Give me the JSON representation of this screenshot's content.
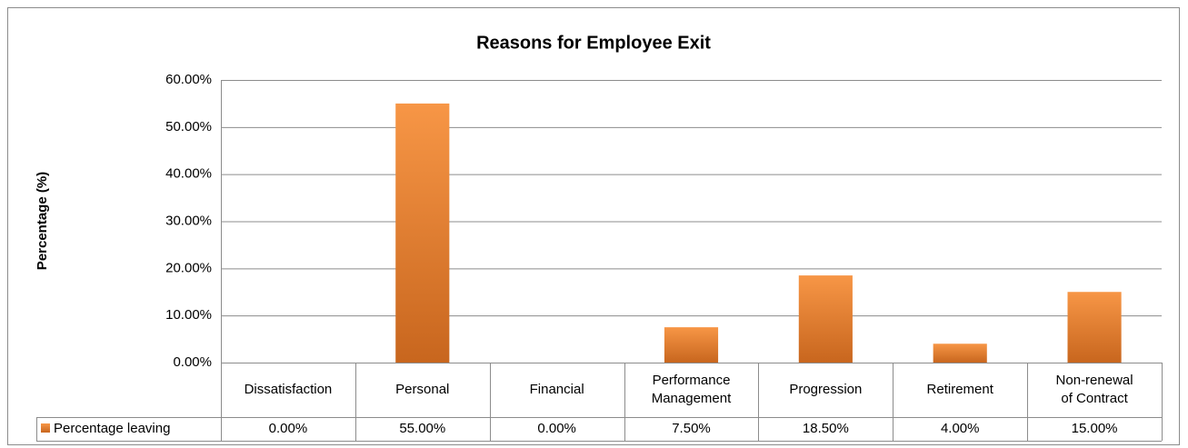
{
  "chart_data": {
    "type": "bar",
    "title": "Reasons for Employee Exit",
    "y_label": "Percentage (%)",
    "categories": [
      "Dissatisfaction",
      "Personal",
      "Financial",
      "Performance Management",
      "Progression",
      "Retirement",
      "Non-renewal of Contract"
    ],
    "series": [
      {
        "name": "Percentage leaving",
        "color": "#f79646",
        "values": [
          0,
          55,
          0,
          7.5,
          18.5,
          4,
          15
        ],
        "value_labels": [
          "0.00%",
          "55.00%",
          "0.00%",
          "7.50%",
          "18.50%",
          "4.00%",
          "15.00%"
        ]
      }
    ],
    "ylim": [
      0,
      60
    ],
    "yticks": [
      {
        "value": 0,
        "label": "0.00%"
      },
      {
        "value": 10,
        "label": "10.00%"
      },
      {
        "value": 20,
        "label": "20.00%"
      },
      {
        "value": 30,
        "label": "30.00%"
      },
      {
        "value": 40,
        "label": "40.00%"
      },
      {
        "value": 50,
        "label": "50.00%"
      },
      {
        "value": 60,
        "label": "60.00%"
      }
    ],
    "grid": true,
    "data_table": true
  }
}
